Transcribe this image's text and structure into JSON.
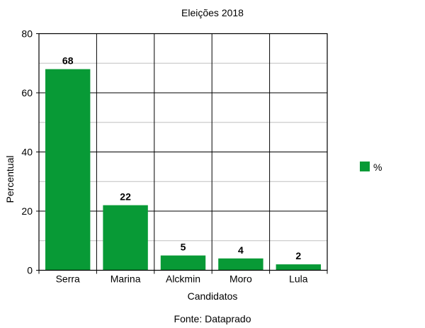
{
  "chart_data": {
    "type": "bar",
    "title": "Eleições 2018",
    "xlabel": "Candidatos",
    "ylabel": "Percentual",
    "categories": [
      "Serra",
      "Marina",
      "Alckmin",
      "Moro",
      "Lula"
    ],
    "series": [
      {
        "name": "%",
        "values": [
          68,
          22,
          5,
          4,
          2
        ],
        "color": "#089a36"
      }
    ],
    "ylim": [
      0,
      80
    ],
    "yticks": [
      0,
      20,
      40,
      60,
      80
    ],
    "grid": true,
    "legend_position": "right",
    "data_labels": true,
    "source": "Fonte: Dataprado"
  }
}
